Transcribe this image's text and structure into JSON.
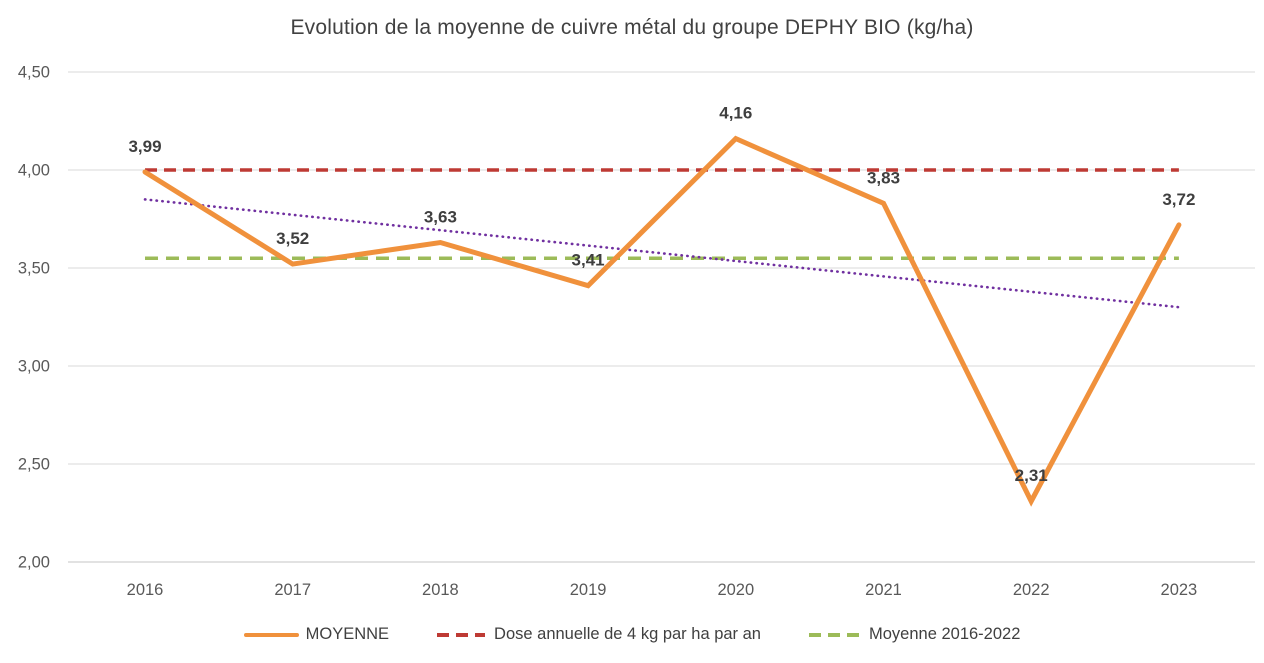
{
  "title": "Evolution de la moyenne de cuivre métal du groupe DEPHY BIO (kg/ha)",
  "chart_data": {
    "type": "line",
    "title": "Evolution de la moyenne de cuivre métal du groupe DEPHY BIO (kg/ha)",
    "categories": [
      "2016",
      "2017",
      "2018",
      "2019",
      "2020",
      "2021",
      "2022",
      "2023"
    ],
    "series": [
      {
        "name": "MOYENNE",
        "values": [
          3.99,
          3.52,
          3.63,
          3.41,
          4.16,
          3.83,
          2.31,
          3.72
        ],
        "data_labels": [
          "3,99",
          "3,52",
          "3,63",
          "3,41",
          "4,16",
          "3,83",
          "2,31",
          "3,72"
        ],
        "color": "#F0913C",
        "style": "solid"
      }
    ],
    "reference_lines": [
      {
        "name": "Dose annuelle de 4 kg par ha par an",
        "value": 4.0,
        "color": "#BE3A34",
        "style": "dashed"
      },
      {
        "name": "Moyenne 2016-2022",
        "value": 3.55,
        "color": "#9CBB58",
        "style": "dashed"
      }
    ],
    "trendline": {
      "name": "linear-trend",
      "start_value": 3.85,
      "end_value": 3.3,
      "color": "#7030A0",
      "style": "dotted"
    },
    "y_axis": {
      "min": 2.0,
      "max": 4.5,
      "step": 0.5,
      "tick_labels": [
        "2,00",
        "2,50",
        "3,00",
        "3,50",
        "4,00",
        "4,50"
      ]
    },
    "x_axis": {
      "label": "",
      "tick_labels": [
        "2016",
        "2017",
        "2018",
        "2019",
        "2020",
        "2021",
        "2022",
        "2023"
      ]
    },
    "grid": "horizontal",
    "legend": {
      "position": "bottom",
      "entries": [
        {
          "label": "MOYENNE",
          "color": "#F0913C",
          "style": "solid"
        },
        {
          "label": "Dose annuelle de 4 kg par ha par an",
          "color": "#BE3A34",
          "style": "dashed"
        },
        {
          "label": "Moyenne 2016-2022",
          "color": "#9CBB58",
          "style": "dashed"
        }
      ]
    }
  },
  "colors": {
    "grid": "#D9D9D9",
    "axis": "#C6C6C6",
    "tick_text": "#595959",
    "data_label_text": "#3F3F3F",
    "title_text": "#414141"
  }
}
